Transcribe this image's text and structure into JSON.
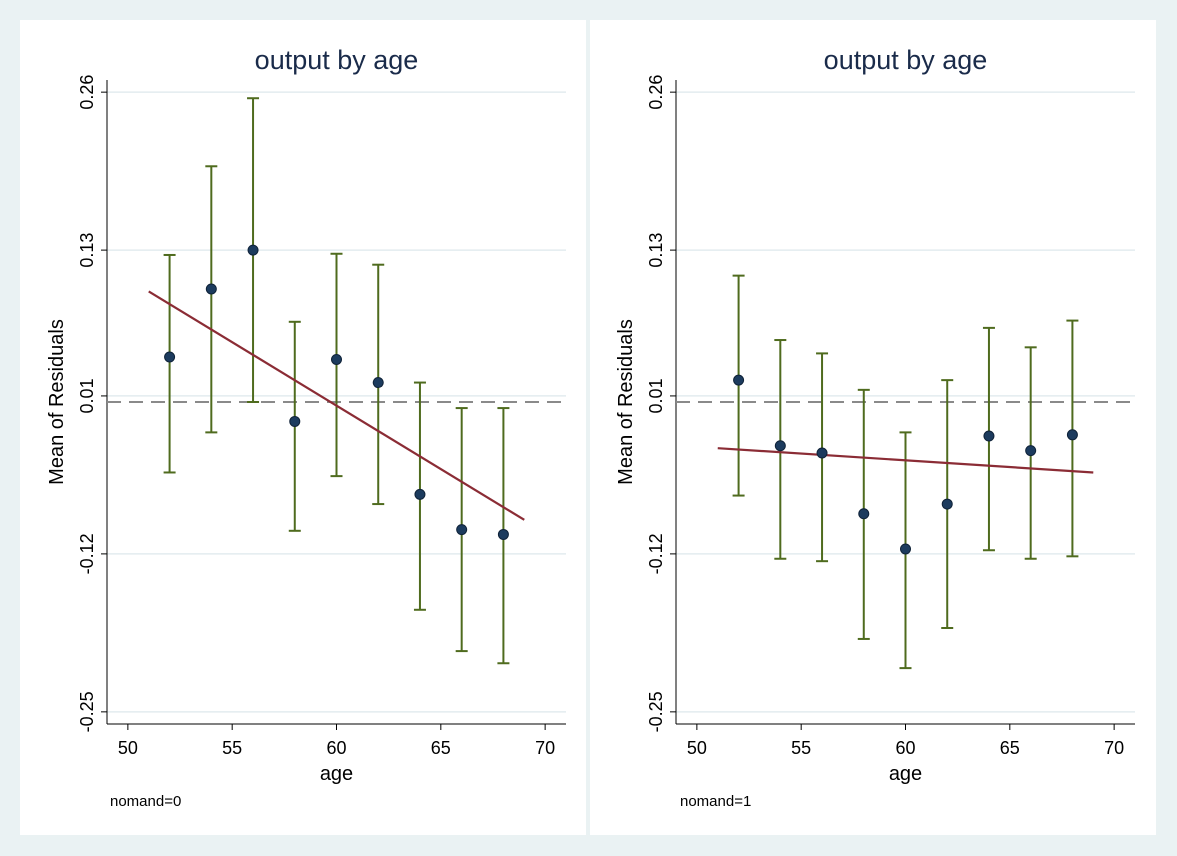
{
  "chart_data": [
    {
      "type": "scatter",
      "title": "output by age",
      "xlabel": "age",
      "ylabel": "Mean of Residuals",
      "note": "nomand=0",
      "xlim": [
        49,
        71
      ],
      "ylim": [
        -0.26,
        0.27
      ],
      "xticks": [
        50,
        55,
        60,
        65,
        70
      ],
      "yticks": [
        -0.25,
        -0.12,
        0.01,
        0.13,
        0.26
      ],
      "ytick_labels": [
        "-0.25",
        "-0.12",
        "0.01",
        "0.13",
        "0.26"
      ],
      "reference_line_y": 0.005,
      "points": [
        {
          "x": 52,
          "y": 0.042,
          "lo": -0.053,
          "hi": 0.126
        },
        {
          "x": 54,
          "y": 0.098,
          "lo": -0.02,
          "hi": 0.199
        },
        {
          "x": 56,
          "y": 0.13,
          "lo": 0.005,
          "hi": 0.255
        },
        {
          "x": 58,
          "y": -0.011,
          "lo": -0.101,
          "hi": 0.071
        },
        {
          "x": 60,
          "y": 0.04,
          "lo": -0.056,
          "hi": 0.127
        },
        {
          "x": 62,
          "y": 0.021,
          "lo": -0.079,
          "hi": 0.118
        },
        {
          "x": 64,
          "y": -0.071,
          "lo": -0.166,
          "hi": 0.021
        },
        {
          "x": 66,
          "y": -0.1,
          "lo": -0.2,
          "hi": 0.0
        },
        {
          "x": 68,
          "y": -0.104,
          "lo": -0.21,
          "hi": 0.0
        }
      ],
      "fit_line": {
        "x": [
          51,
          69
        ],
        "y": [
          0.096,
          -0.092
        ]
      },
      "colors": {
        "point": "#1c3b5e",
        "errorbar": "#4f6b1e",
        "fit": "#8b2c35",
        "refline": "#8a8a8a",
        "grid": "#e3ecef"
      },
      "grid": true
    },
    {
      "type": "scatter",
      "title": "output by age",
      "xlabel": "age",
      "ylabel": "Mean of Residuals",
      "note": "nomand=1",
      "xlim": [
        49,
        71
      ],
      "ylim": [
        -0.26,
        0.27
      ],
      "xticks": [
        50,
        55,
        60,
        65,
        70
      ],
      "yticks": [
        -0.25,
        -0.12,
        0.01,
        0.13,
        0.26
      ],
      "ytick_labels": [
        "-0.25",
        "-0.12",
        "0.01",
        "0.13",
        "0.26"
      ],
      "reference_line_y": 0.005,
      "points": [
        {
          "x": 52,
          "y": 0.023,
          "lo": -0.072,
          "hi": 0.109
        },
        {
          "x": 54,
          "y": -0.031,
          "lo": -0.124,
          "hi": 0.056
        },
        {
          "x": 56,
          "y": -0.037,
          "lo": -0.126,
          "hi": 0.045
        },
        {
          "x": 58,
          "y": -0.087,
          "lo": -0.19,
          "hi": 0.015
        },
        {
          "x": 60,
          "y": -0.116,
          "lo": -0.214,
          "hi": -0.02
        },
        {
          "x": 62,
          "y": -0.079,
          "lo": -0.181,
          "hi": 0.023
        },
        {
          "x": 64,
          "y": -0.023,
          "lo": -0.117,
          "hi": 0.066
        },
        {
          "x": 66,
          "y": -0.035,
          "lo": -0.124,
          "hi": 0.05
        },
        {
          "x": 68,
          "y": -0.022,
          "lo": -0.122,
          "hi": 0.072
        }
      ],
      "fit_line": {
        "x": [
          51,
          69
        ],
        "y": [
          -0.033,
          -0.053
        ]
      },
      "colors": {
        "point": "#1c3b5e",
        "errorbar": "#4f6b1e",
        "fit": "#8b2c35",
        "refline": "#8a8a8a",
        "grid": "#e3ecef"
      },
      "grid": true
    }
  ]
}
